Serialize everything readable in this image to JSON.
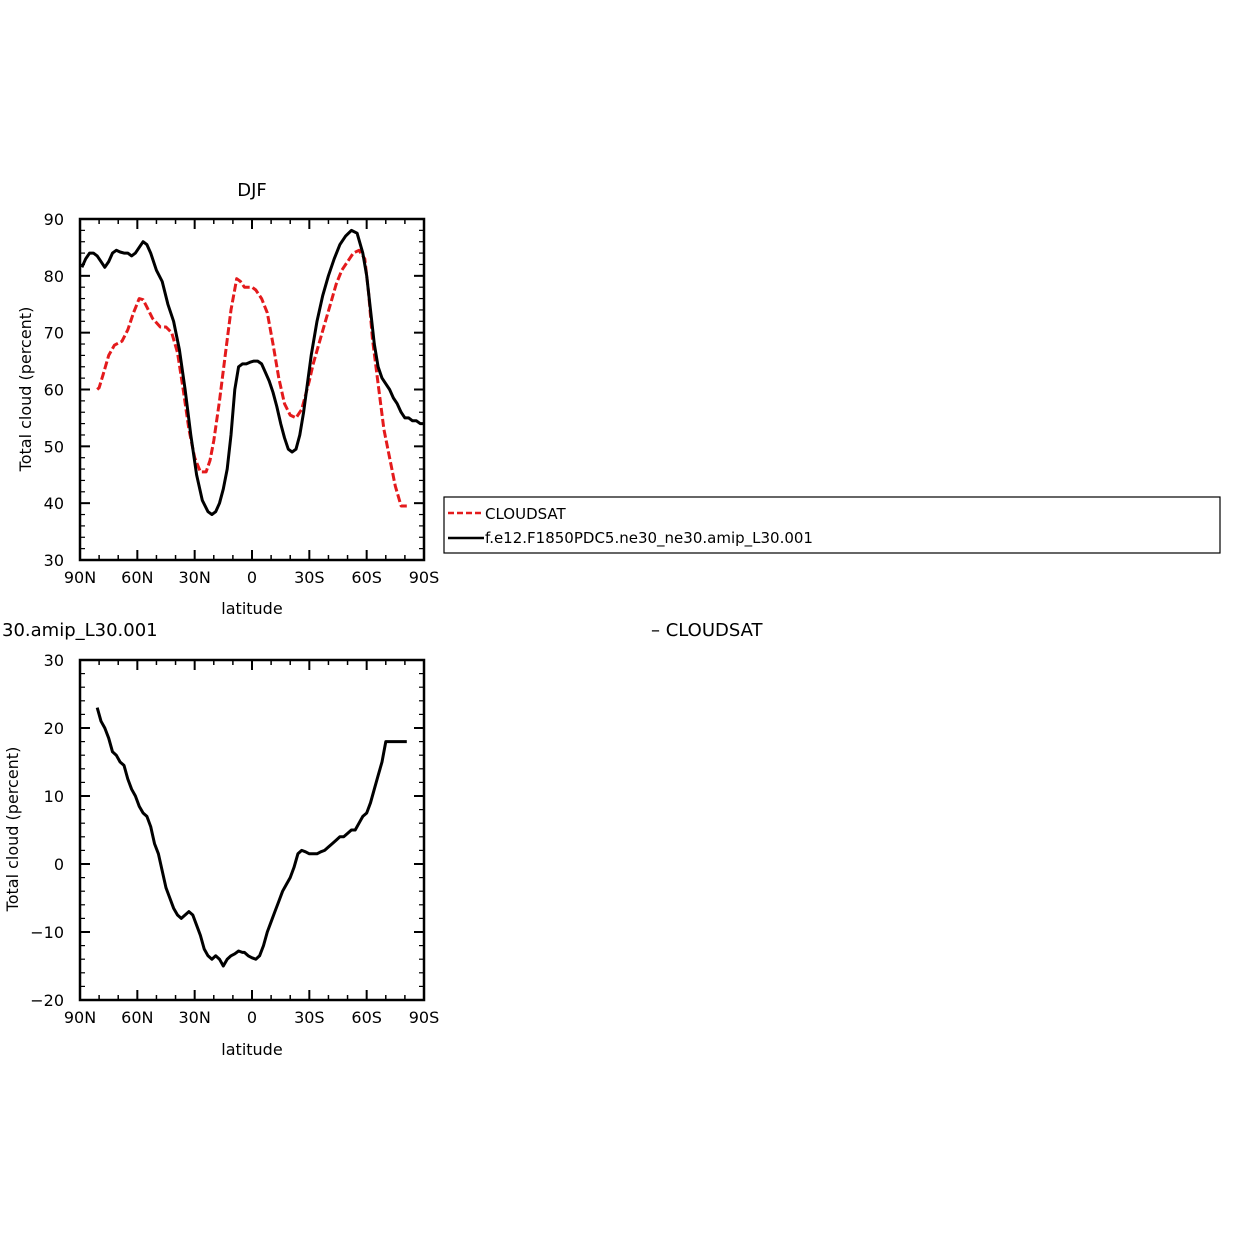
{
  "chart_data": [
    {
      "type": "line",
      "title": "DJF",
      "xlabel": "latitude",
      "ylabel": "Total cloud (percent)",
      "xlim": [
        90,
        -90
      ],
      "ylim": [
        30,
        90
      ],
      "xticks": [
        90,
        60,
        30,
        0,
        -30,
        -60,
        -90
      ],
      "xtick_labels": [
        "90N",
        "60N",
        "30N",
        "0",
        "30S",
        "60S",
        "90S"
      ],
      "yticks": [
        30,
        40,
        50,
        60,
        70,
        80,
        90
      ],
      "ytick_labels": [
        "30",
        "40",
        "50",
        "60",
        "70",
        "80",
        "90"
      ],
      "legend": "right, outside",
      "series": [
        {
          "name": "CLOUDSAT",
          "color": "#e41a1c",
          "dash": "dashed",
          "x": [
            81,
            80,
            78,
            75,
            72,
            68,
            65,
            62,
            59,
            57,
            55,
            52,
            48,
            45,
            42,
            39,
            36,
            33,
            30,
            27,
            24,
            22,
            20,
            17,
            14,
            11,
            8,
            6,
            4,
            2,
            0,
            -2,
            -5,
            -8,
            -11,
            -14,
            -17,
            -20,
            -23,
            -26,
            -28,
            -30,
            -32,
            -35,
            -38,
            -41,
            -44,
            -47,
            -50,
            -53,
            -56,
            -59,
            -61,
            -63,
            -66,
            -69,
            -72,
            -75,
            -78,
            -81
          ],
          "y": [
            60,
            60.3,
            62.5,
            66,
            67.8,
            68.5,
            70.5,
            73.5,
            76,
            75.8,
            74.5,
            72.5,
            71,
            71,
            70,
            66.5,
            60,
            53,
            48,
            45.5,
            45.5,
            47.5,
            51,
            58,
            66,
            74,
            79.5,
            79,
            78,
            78,
            78,
            77.5,
            76,
            73.5,
            68,
            62,
            57.5,
            55.5,
            55,
            56.5,
            59,
            61.5,
            64.5,
            68,
            71.5,
            75,
            78.5,
            81,
            82.5,
            84,
            84.5,
            83,
            77,
            69,
            61,
            53,
            48,
            43,
            39.5,
            39.5
          ]
        },
        {
          "name": "f.e12.F1850PDC5.ne30_ne30.amip_L30.001",
          "color": "#000000",
          "dash": "solid",
          "x": [
            89,
            87,
            85,
            83,
            81,
            79,
            77,
            75,
            73,
            71,
            69,
            67,
            65,
            63,
            61,
            59,
            57,
            55,
            53,
            50,
            47,
            44,
            41,
            38,
            35,
            32,
            29,
            26,
            23,
            21,
            19,
            17,
            15,
            13,
            11,
            9,
            7,
            5,
            3,
            1,
            -1,
            -3,
            -5,
            -7,
            -9,
            -11,
            -13,
            -15,
            -17,
            -19,
            -21,
            -23,
            -25,
            -27,
            -29,
            -31,
            -34,
            -37,
            -40,
            -43,
            -46,
            -49,
            -52,
            -55,
            -58,
            -60,
            -62,
            -64,
            -66,
            -68,
            -70,
            -72,
            -74,
            -76,
            -78,
            -80,
            -82,
            -84,
            -86,
            -88,
            -90
          ],
          "y": [
            81.5,
            83,
            84,
            84,
            83.5,
            82.5,
            81.5,
            82.5,
            84,
            84.5,
            84.2,
            84,
            84,
            83.5,
            84,
            85,
            86,
            85.5,
            84,
            81,
            79,
            75,
            72,
            67,
            60,
            52,
            45,
            40.5,
            38.5,
            38,
            38.5,
            40,
            42.5,
            46,
            52,
            60,
            64,
            64.5,
            64.5,
            64.8,
            65,
            65,
            64.5,
            63,
            61.5,
            59.5,
            57,
            54,
            51.5,
            49.5,
            49,
            49.5,
            52,
            56,
            61,
            66,
            72,
            76.5,
            80,
            83,
            85.5,
            87,
            88,
            87.5,
            84,
            80,
            74,
            68,
            64,
            62,
            61,
            60,
            58.5,
            57.5,
            56,
            55,
            55,
            54.5,
            54.5,
            54,
            54
          ]
        }
      ]
    },
    {
      "type": "line",
      "title": "30.amip_L30.001",
      "title_right": "– CLOUDSAT",
      "xlabel": "latitude",
      "ylabel": "Total cloud (percent)",
      "xlim": [
        90,
        -90
      ],
      "ylim": [
        -20,
        30
      ],
      "xticks": [
        90,
        60,
        30,
        0,
        -30,
        -60,
        -90
      ],
      "xtick_labels": [
        "90N",
        "60N",
        "30N",
        "0",
        "30S",
        "60S",
        "90S"
      ],
      "yticks": [
        -20,
        -10,
        0,
        10,
        20,
        30
      ],
      "ytick_labels": [
        "−20",
        "−10",
        "0",
        "10",
        "20",
        "30"
      ],
      "series": [
        {
          "name": "",
          "color": "#000000",
          "dash": "solid",
          "x": [
            81,
            79,
            77,
            75,
            73,
            71,
            69,
            67,
            65,
            63,
            61,
            59,
            57,
            55,
            53,
            51,
            49,
            47,
            45,
            43,
            41,
            39,
            37,
            35,
            33,
            31,
            29,
            27,
            25,
            23,
            21,
            19,
            17,
            15,
            13,
            11,
            9,
            7,
            5,
            4,
            2,
            0,
            -2,
            -4,
            -6,
            -8,
            -10,
            -12,
            -14,
            -16,
            -18,
            -20,
            -22,
            -24,
            -26,
            -28,
            -30,
            -32,
            -34,
            -36,
            -38,
            -40,
            -42,
            -44,
            -46,
            -48,
            -50,
            -52,
            -54,
            -56,
            -58,
            -60,
            -62,
            -64,
            -66,
            -68,
            -70,
            -72,
            -74,
            -76,
            -78,
            -80,
            -81
          ],
          "y": [
            23,
            21,
            20,
            18.5,
            16.5,
            16,
            15,
            14.5,
            12.5,
            11,
            10,
            8.5,
            7.5,
            7,
            5.5,
            3,
            1.5,
            -1,
            -3.5,
            -5,
            -6.5,
            -7.5,
            -8,
            -7.5,
            -7,
            -7.5,
            -9,
            -10.5,
            -12.5,
            -13.5,
            -14,
            -13.5,
            -14,
            -15,
            -14,
            -13.5,
            -13.2,
            -12.8,
            -13,
            -13,
            -13.5,
            -13.8,
            -14,
            -13.5,
            -12,
            -10,
            -8.5,
            -7,
            -5.5,
            -4,
            -3,
            -2,
            -0.5,
            1.5,
            2,
            1.8,
            1.5,
            1.5,
            1.5,
            1.8,
            2,
            2.5,
            3,
            3.5,
            4,
            4,
            4.5,
            5,
            5,
            6,
            7,
            7.5,
            9,
            11,
            13,
            15,
            18,
            18,
            18,
            18,
            18,
            18,
            18
          ]
        }
      ]
    }
  ],
  "legend_entries": [
    {
      "label": "CLOUDSAT",
      "color": "#e41a1c",
      "dash": "dashed"
    },
    {
      "label": "f.e12.F1850PDC5.ne30_ne30.amip_L30.001",
      "color": "#000000",
      "dash": "solid"
    }
  ]
}
